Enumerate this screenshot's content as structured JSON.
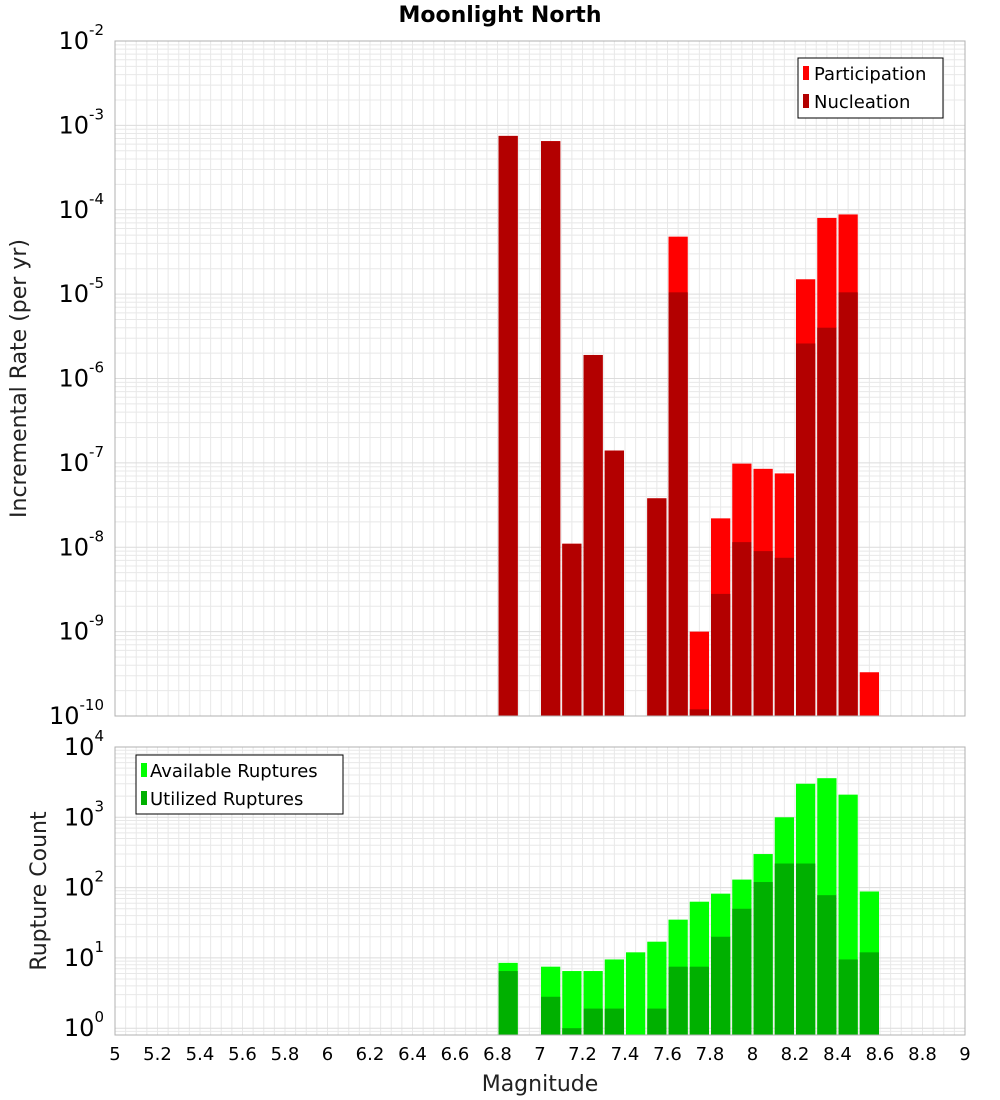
{
  "title": "Moonlight North",
  "xlabel": "Magnitude",
  "colors": {
    "participation": "#ff0000",
    "nucleation": "#b30000",
    "available": "#00ff00",
    "utilized": "#00b000",
    "grid": "#e8e8e8",
    "frame": "#b0b0b0"
  },
  "chart_data": [
    {
      "type": "bar",
      "ylabel": "Incremental Rate (per yr)",
      "yscale": "log",
      "ylim": [
        1e-10,
        0.01
      ],
      "xlim": [
        5,
        9
      ],
      "grid": true,
      "legend_position": "top-right",
      "y_ticks": [
        {
          "base": "10",
          "exp": "-10"
        },
        {
          "base": "10",
          "exp": "-9"
        },
        {
          "base": "10",
          "exp": "-8"
        },
        {
          "base": "10",
          "exp": "-7"
        },
        {
          "base": "10",
          "exp": "-6"
        },
        {
          "base": "10",
          "exp": "-5"
        },
        {
          "base": "10",
          "exp": "-4"
        },
        {
          "base": "10",
          "exp": "-3"
        },
        {
          "base": "10",
          "exp": "-2"
        }
      ],
      "x": [
        6.85,
        6.95,
        7.05,
        7.15,
        7.25,
        7.35,
        7.45,
        7.55,
        7.65,
        7.75,
        7.85,
        7.95,
        8.05,
        8.15,
        8.25,
        8.35,
        8.45,
        8.55
      ],
      "series": [
        {
          "name": "Participation",
          "values": [
            0.00075,
            0,
            0.00065,
            1.1e-08,
            1.9e-06,
            1.4e-07,
            0,
            3.8e-08,
            4.8e-05,
            1e-09,
            2.2e-08,
            9.8e-08,
            8.5e-08,
            7.5e-08,
            1.5e-05,
            8e-05,
            8.8e-05,
            3.3e-10
          ]
        },
        {
          "name": "Nucleation",
          "values": [
            0.00075,
            0,
            0.00065,
            1.1e-08,
            1.9e-06,
            1.4e-07,
            0,
            3.8e-08,
            1.05e-05,
            1.2e-10,
            2.8e-09,
            1.15e-08,
            9e-09,
            7.5e-09,
            2.6e-06,
            4e-06,
            1.05e-05,
            0
          ]
        }
      ]
    },
    {
      "type": "bar",
      "ylabel": "Rupture Count",
      "yscale": "log",
      "ylim": [
        0.8,
        10000
      ],
      "xlim": [
        5,
        9
      ],
      "grid": true,
      "legend_position": "top-left",
      "y_ticks": [
        {
          "base": "10",
          "exp": "0"
        },
        {
          "base": "10",
          "exp": "1"
        },
        {
          "base": "10",
          "exp": "2"
        },
        {
          "base": "10",
          "exp": "3"
        },
        {
          "base": "10",
          "exp": "4"
        }
      ],
      "x_ticks": [
        "5",
        "5.2",
        "5.4",
        "5.6",
        "5.8",
        "6",
        "6.2",
        "6.4",
        "6.6",
        "6.8",
        "7",
        "7.2",
        "7.4",
        "7.6",
        "7.8",
        "8",
        "8.2",
        "8.4",
        "8.6",
        "8.8",
        "9"
      ],
      "x": [
        6.85,
        6.95,
        7.05,
        7.15,
        7.25,
        7.35,
        7.45,
        7.55,
        7.65,
        7.75,
        7.85,
        7.95,
        8.05,
        8.15,
        8.25,
        8.35,
        8.45,
        8.55
      ],
      "series": [
        {
          "name": "Available Ruptures",
          "values": [
            8.5,
            0,
            7.5,
            6.5,
            6.5,
            9.5,
            12,
            17,
            35,
            63,
            82,
            130,
            300,
            1000,
            3000,
            3600,
            2100,
            88
          ]
        },
        {
          "name": "Utilized Ruptures",
          "values": [
            6.5,
            0,
            2.8,
            1.0,
            1.9,
            1.9,
            0,
            1.9,
            7.5,
            7.5,
            20,
            50,
            120,
            220,
            220,
            78,
            9.5,
            12
          ]
        }
      ]
    }
  ]
}
